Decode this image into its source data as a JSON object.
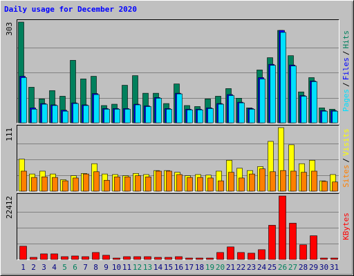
{
  "title": "Daily usage for December 2020",
  "legend_separator": "/",
  "chart_data": [
    {
      "type": "bar",
      "ylim": [
        0,
        303
      ],
      "yticks": [
        303
      ],
      "series": [
        {
          "name": "Hits",
          "color": "#00805c",
          "values": [
            303,
            107,
            72,
            97,
            80,
            188,
            132,
            140,
            52,
            56,
            113,
            142,
            89,
            89,
            58,
            117,
            52,
            49,
            72,
            80,
            103,
            74,
            45,
            159,
            196,
            278,
            202,
            93,
            136,
            45,
            41
          ]
        },
        {
          "name": "Files",
          "color": "#0000ff",
          "values": [
            140,
            45,
            58,
            54,
            38,
            60,
            54,
            88,
            43,
            43,
            43,
            56,
            51,
            76,
            43,
            89,
            41,
            41,
            45,
            58,
            85,
            62,
            43,
            136,
            176,
            278,
            174,
            82,
            126,
            37,
            37
          ]
        },
        {
          "name": "Pages",
          "color": "#00e0ff",
          "values": [
            136,
            41,
            56,
            52,
            35,
            58,
            52,
            85,
            41,
            41,
            41,
            54,
            49,
            74,
            41,
            87,
            39,
            39,
            43,
            56,
            82,
            60,
            41,
            132,
            173,
            272,
            171,
            80,
            124,
            35,
            35
          ]
        }
      ]
    },
    {
      "type": "bar",
      "ylim": [
        0,
        111
      ],
      "yticks": [
        111
      ],
      "series": [
        {
          "name": "Visits",
          "color": "#ffff00",
          "values": [
            56,
            30,
            35,
            30,
            20,
            27,
            31,
            48,
            30,
            29,
            27,
            31,
            29,
            36,
            36,
            33,
            27,
            29,
            28,
            35,
            54,
            40,
            36,
            43,
            87,
            111,
            81,
            48,
            54,
            18,
            29
          ]
        },
        {
          "name": "Sites",
          "color": "#ff8000",
          "values": [
            35,
            24,
            25,
            24,
            18,
            23,
            30,
            34,
            19,
            25,
            25,
            27,
            25,
            35,
            35,
            29,
            24,
            24,
            23,
            18,
            33,
            23,
            30,
            39,
            34,
            36,
            35,
            33,
            35,
            17,
            16
          ]
        }
      ]
    },
    {
      "type": "bar",
      "ylim": [
        0,
        22412
      ],
      "yticks": [
        22412
      ],
      "categories": [
        "1",
        "2",
        "3",
        "4",
        "5",
        "6",
        "7",
        "8",
        "9",
        "10",
        "11",
        "12",
        "13",
        "14",
        "15",
        "16",
        "17",
        "18",
        "19",
        "20",
        "21",
        "22",
        "23",
        "24",
        "25",
        "26",
        "27",
        "28",
        "29",
        "30",
        "31"
      ],
      "category_colors": [
        "#000080",
        "#000080",
        "#000080",
        "#000080",
        "#00805c",
        "#00805c",
        "#000080",
        "#000080",
        "#000080",
        "#000080",
        "#000080",
        "#00805c",
        "#00805c",
        "#000080",
        "#000080",
        "#000080",
        "#000080",
        "#000080",
        "#00805c",
        "#00805c",
        "#000080",
        "#000080",
        "#000080",
        "#000080",
        "#000080",
        "#00805c",
        "#00805c",
        "#000080",
        "#000080",
        "#000080",
        "#000080"
      ],
      "series": [
        {
          "name": "KBytes",
          "color": "#ff0000",
          "values": [
            4680,
            740,
            1970,
            1970,
            985,
            1230,
            985,
            2460,
            1480,
            490,
            985,
            985,
            985,
            740,
            740,
            985,
            490,
            490,
            490,
            2460,
            4430,
            2460,
            2215,
            3450,
            12070,
            22412,
            12800,
            5170,
            8370,
            490,
            490
          ]
        }
      ]
    }
  ]
}
